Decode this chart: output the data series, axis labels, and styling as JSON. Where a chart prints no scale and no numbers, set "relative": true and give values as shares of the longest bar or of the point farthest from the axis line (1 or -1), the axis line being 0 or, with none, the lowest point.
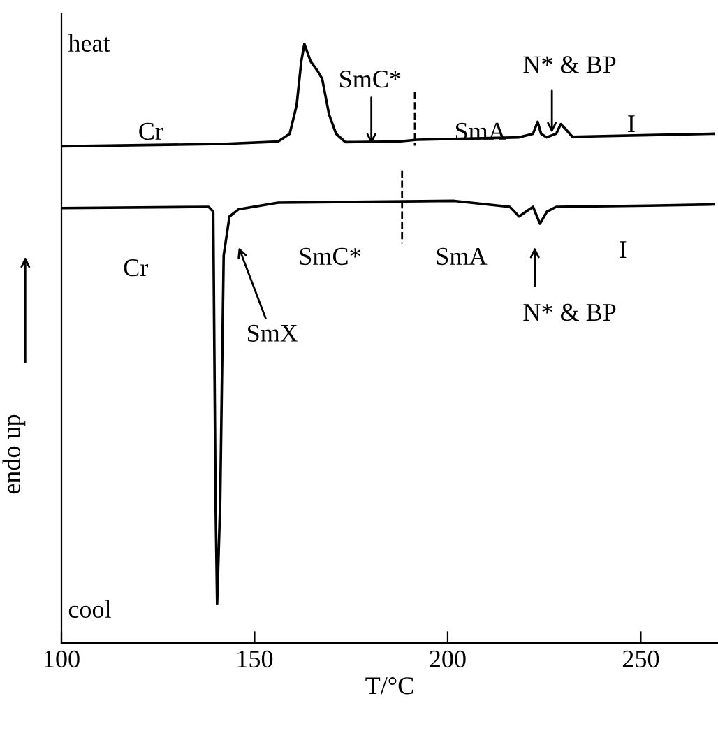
{
  "chart_data": {
    "type": "line",
    "relative": true,
    "xlabel": "T/°C",
    "ylabel": "endo up",
    "xlim": [
      100,
      270
    ],
    "xticks": [
      100,
      150,
      200,
      250
    ],
    "grid": false,
    "legend": false,
    "line_style": "solid",
    "marker": "none",
    "series": [
      {
        "color": "#000000",
        "x": [
          100,
          141.7,
          156.1,
          159.1,
          160.9,
          162.1,
          162.9,
          164.5,
          166.3,
          167.5,
          169.3,
          171.1,
          173.5,
          187.3,
          192.1,
          218.5,
          222.1,
          223.3,
          224.2,
          225.6,
          228.1,
          229.3,
          230.5,
          232.3,
          254.4,
          268.8
        ],
        "values": [
          0.829,
          0.833,
          0.837,
          0.85,
          0.898,
          0.971,
          1.0,
          0.971,
          0.955,
          0.942,
          0.882,
          0.85,
          0.836,
          0.837,
          0.84,
          0.844,
          0.85,
          0.87,
          0.85,
          0.844,
          0.85,
          0.866,
          0.858,
          0.845,
          0.848,
          0.85
        ]
      },
      {
        "color": "#000000",
        "x": [
          100,
          138.1,
          139.3,
          139.9,
          140.3,
          141.1,
          142.0,
          143.5,
          145.9,
          156.1,
          201.7,
          216.1,
          218.5,
          220.3,
          222.1,
          223.9,
          225.7,
          228.1,
          252.1,
          268.8
        ],
        "values": [
          0.726,
          0.728,
          0.72,
          0.235,
          0.065,
          0.235,
          0.647,
          0.712,
          0.724,
          0.735,
          0.738,
          0.728,
          0.712,
          0.72,
          0.728,
          0.7,
          0.72,
          0.728,
          0.73,
          0.732
        ]
      },
      {
        "color": "#000000",
        "line_style": "dashed",
        "x": [
          191.5,
          191.5
        ],
        "values": [
          0.92,
          0.83
        ]
      },
      {
        "color": "#000000",
        "line_style": "dashed",
        "x": [
          188.2,
          188.2
        ],
        "values": [
          0.789,
          0.667
        ]
      }
    ],
    "annotations": [
      "heat",
      "cool",
      "Cr",
      "SmC*",
      "SmA",
      "N* & BP",
      "I",
      "Cr",
      "SmX",
      "SmC*",
      "SmA",
      "N* & BP",
      "I"
    ]
  }
}
